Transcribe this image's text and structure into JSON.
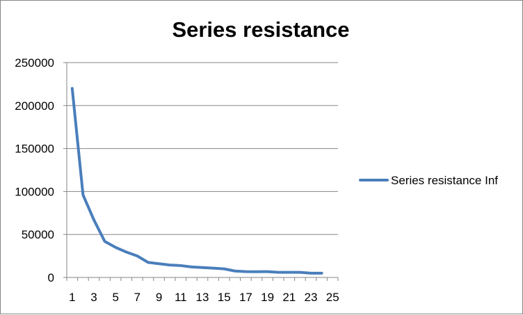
{
  "chart_data": {
    "type": "line",
    "title": "Series resistance",
    "xlabel": "",
    "ylabel": "",
    "x_tick_labels": [
      "1",
      "3",
      "5",
      "7",
      "9",
      "11",
      "13",
      "15",
      "17",
      "19",
      "21",
      "23",
      "25"
    ],
    "y_tick_labels": [
      "0",
      "50000",
      "100000",
      "150000",
      "200000",
      "250000"
    ],
    "ylim": [
      0,
      250000
    ],
    "x_categories": 25,
    "grid": true,
    "legend_position": "right",
    "series": [
      {
        "name": "Series resistance Inf",
        "color": "#4a7ebb",
        "x": [
          1,
          2,
          3,
          4,
          5,
          6,
          7,
          8,
          9,
          10,
          11,
          12,
          13,
          14,
          15,
          16,
          17,
          18,
          19,
          20,
          21,
          22,
          23,
          24
        ],
        "values": [
          220000,
          96000,
          67000,
          42000,
          35000,
          29500,
          25000,
          17500,
          16000,
          14500,
          13800,
          12200,
          11500,
          10800,
          10000,
          7500,
          6800,
          6700,
          6800,
          6000,
          6000,
          6000,
          5000,
          5000
        ]
      }
    ]
  }
}
